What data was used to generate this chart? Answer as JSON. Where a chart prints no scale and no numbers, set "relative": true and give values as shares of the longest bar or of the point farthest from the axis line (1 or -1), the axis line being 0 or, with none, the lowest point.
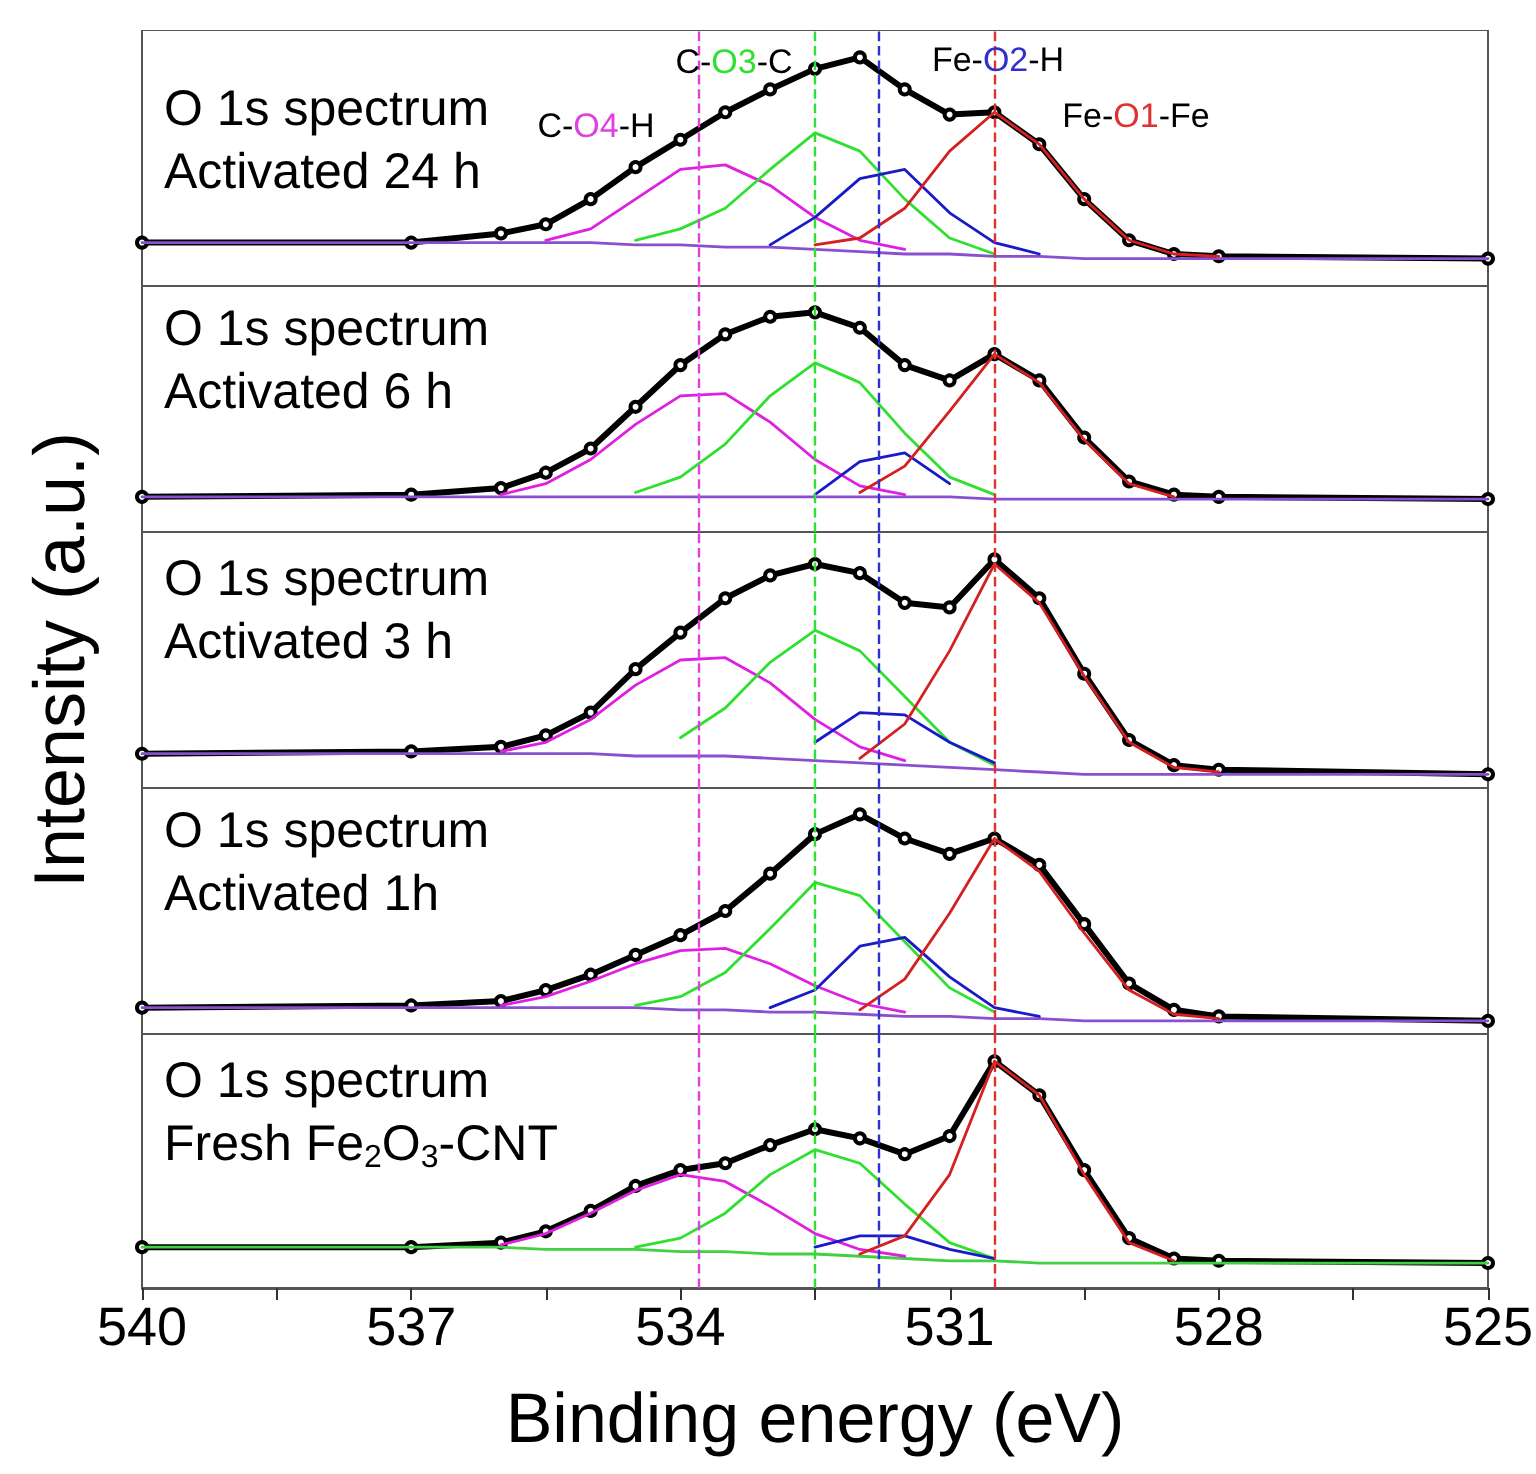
{
  "chart_data": [
    {
      "type": "line",
      "title": "O 1s spectrum",
      "subtitle": "Activated 24 h",
      "relative": true,
      "marker": "none",
      "tick_labels": false,
      "xlim": [
        540,
        525
      ],
      "x": [
        540,
        537,
        536,
        535.5,
        535,
        534.5,
        534,
        533.5,
        533,
        532.5,
        532,
        531.5,
        531,
        530.5,
        530,
        529.5,
        529,
        528.5,
        528,
        525
      ],
      "series": [
        {
          "color": "#000000",
          "marker": "circle",
          "values": [
            0.19,
            0.19,
            0.23,
            0.27,
            0.38,
            0.52,
            0.64,
            0.76,
            0.86,
            0.95,
            1,
            0.86,
            0.75,
            0.76,
            0.62,
            0.38,
            0.2,
            0.14,
            0.13,
            0.12
          ]
        },
        {
          "color": "#8a4fcf",
          "values": [
            0.19,
            0.19,
            0.19,
            0.19,
            0.19,
            0.18,
            0.18,
            0.17,
            0.17,
            0.16,
            0.15,
            0.14,
            0.14,
            0.13,
            0.13,
            0.12,
            0.12,
            0.12,
            0.12,
            0.12
          ]
        },
        {
          "color": "#e020e0",
          "values": [
            null,
            null,
            null,
            0.2,
            0.25,
            0.38,
            0.51,
            0.53,
            0.44,
            0.3,
            0.2,
            0.16,
            null,
            null,
            null,
            null,
            null,
            null,
            null,
            null
          ]
        },
        {
          "color": "#30e030",
          "values": [
            null,
            null,
            null,
            null,
            null,
            0.2,
            0.25,
            0.34,
            0.51,
            0.67,
            0.59,
            0.38,
            0.21,
            0.14,
            null,
            null,
            null,
            null,
            null,
            null
          ]
        },
        {
          "color": "#1a1ac8",
          "values": [
            null,
            null,
            null,
            null,
            null,
            null,
            null,
            null,
            0.18,
            0.3,
            0.47,
            0.51,
            0.32,
            0.19,
            0.14,
            null,
            null,
            null,
            null,
            null
          ]
        },
        {
          "color": "#d42020",
          "values": [
            null,
            null,
            null,
            null,
            null,
            null,
            null,
            null,
            null,
            0.18,
            0.21,
            0.34,
            0.59,
            0.76,
            0.62,
            0.38,
            0.2,
            0.14,
            0.13,
            null
          ]
        }
      ],
      "ref_lines": [
        {
          "axis": "x",
          "value": 533.8,
          "color": "#e040e0",
          "line_style": "dashed"
        },
        {
          "axis": "x",
          "value": 532.5,
          "color": "#30e030",
          "line_style": "dashed"
        },
        {
          "axis": "x",
          "value": 531.8,
          "color": "#3030d0",
          "line_style": "dashed"
        },
        {
          "axis": "x",
          "value": 530.5,
          "color": "#e03030",
          "line_style": "dashed"
        }
      ],
      "annotations": [
        "C-O4-H",
        "C-O3-C",
        "Fe-O2-H",
        "Fe-O1-Fe"
      ]
    },
    {
      "type": "line",
      "title": "O 1s spectrum",
      "subtitle": "Activated 6 h",
      "relative": true,
      "marker": "none",
      "tick_labels": false,
      "xlim": [
        540,
        525
      ],
      "x": [
        540,
        537,
        536,
        535.5,
        535,
        534.5,
        534,
        533.5,
        533,
        532.5,
        532,
        531.5,
        531,
        530.5,
        530,
        529.5,
        529,
        528.5,
        528,
        525
      ],
      "series": [
        {
          "color": "#000000",
          "marker": "circle",
          "values": [
            0.16,
            0.17,
            0.2,
            0.27,
            0.38,
            0.57,
            0.76,
            0.9,
            0.98,
            1,
            0.93,
            0.76,
            0.69,
            0.81,
            0.69,
            0.43,
            0.23,
            0.17,
            0.16,
            0.15
          ]
        },
        {
          "color": "#8a4fcf",
          "values": [
            0.16,
            0.16,
            0.16,
            0.16,
            0.16,
            0.16,
            0.16,
            0.16,
            0.16,
            0.16,
            0.16,
            0.16,
            0.16,
            0.15,
            0.15,
            0.15,
            0.15,
            0.15,
            0.15,
            0.15
          ]
        },
        {
          "color": "#e020e0",
          "values": [
            null,
            null,
            0.17,
            0.22,
            0.33,
            0.49,
            0.62,
            0.63,
            0.5,
            0.33,
            0.21,
            0.17,
            null,
            null,
            null,
            null,
            null,
            null,
            null,
            null
          ]
        },
        {
          "color": "#30e030",
          "values": [
            null,
            null,
            null,
            null,
            null,
            0.18,
            0.25,
            0.4,
            0.62,
            0.77,
            0.68,
            0.45,
            0.25,
            0.17,
            null,
            null,
            null,
            null,
            null,
            null
          ]
        },
        {
          "color": "#1a1ac8",
          "values": [
            null,
            null,
            null,
            null,
            null,
            null,
            null,
            null,
            null,
            0.17,
            0.32,
            0.36,
            0.22,
            null,
            null,
            null,
            null,
            null,
            null,
            null
          ]
        },
        {
          "color": "#d42020",
          "values": [
            null,
            null,
            null,
            null,
            null,
            null,
            null,
            null,
            null,
            null,
            0.18,
            0.3,
            0.55,
            0.81,
            0.68,
            0.42,
            0.22,
            0.16,
            null,
            null
          ]
        }
      ],
      "ref_lines": [
        {
          "axis": "x",
          "value": 533.8,
          "color": "#e040e0",
          "line_style": "dashed"
        },
        {
          "axis": "x",
          "value": 532.5,
          "color": "#30e030",
          "line_style": "dashed"
        },
        {
          "axis": "x",
          "value": 531.8,
          "color": "#3030d0",
          "line_style": "dashed"
        },
        {
          "axis": "x",
          "value": 530.5,
          "color": "#e03030",
          "line_style": "dashed"
        }
      ]
    },
    {
      "type": "line",
      "title": "O 1s spectrum",
      "subtitle": "Activated 3 h",
      "ylabel": "Intensity (a.u.)",
      "relative": true,
      "marker": "none",
      "tick_labels": false,
      "xlim": [
        540,
        525
      ],
      "x": [
        540,
        537,
        536,
        535.5,
        535,
        534.5,
        534,
        533.5,
        533,
        532.5,
        532,
        531.5,
        531,
        530.5,
        530,
        529.5,
        529,
        528.5,
        528,
        525
      ],
      "series": [
        {
          "color": "#000000",
          "marker": "circle",
          "values": [
            0.15,
            0.16,
            0.18,
            0.23,
            0.33,
            0.52,
            0.68,
            0.83,
            0.93,
            0.98,
            0.94,
            0.81,
            0.79,
            1,
            0.83,
            0.5,
            0.21,
            0.1,
            0.08,
            0.06
          ]
        },
        {
          "color": "#8a4fcf",
          "values": [
            0.15,
            0.15,
            0.15,
            0.15,
            0.15,
            0.14,
            0.14,
            0.14,
            0.13,
            0.12,
            0.11,
            0.1,
            0.09,
            0.08,
            0.07,
            0.06,
            0.06,
            0.06,
            0.06,
            0.06
          ]
        },
        {
          "color": "#e020e0",
          "values": [
            null,
            null,
            0.16,
            0.2,
            0.3,
            0.45,
            0.56,
            0.57,
            0.46,
            0.3,
            0.18,
            0.12,
            null,
            null,
            null,
            null,
            null,
            null,
            null,
            null
          ]
        },
        {
          "color": "#30e030",
          "values": [
            null,
            null,
            null,
            null,
            null,
            null,
            0.22,
            0.35,
            0.55,
            0.69,
            0.6,
            0.4,
            0.2,
            0.1,
            null,
            null,
            null,
            null,
            null,
            null
          ]
        },
        {
          "color": "#1a1ac8",
          "values": [
            null,
            null,
            null,
            null,
            null,
            null,
            null,
            null,
            null,
            0.2,
            0.33,
            0.32,
            0.2,
            0.11,
            null,
            null,
            null,
            null,
            null,
            null
          ]
        },
        {
          "color": "#d42020",
          "values": [
            null,
            null,
            null,
            null,
            null,
            null,
            null,
            null,
            null,
            null,
            0.13,
            0.28,
            0.6,
            0.98,
            0.81,
            0.49,
            0.2,
            0.09,
            0.07,
            null
          ]
        }
      ],
      "ref_lines": [
        {
          "axis": "x",
          "value": 533.8,
          "color": "#e040e0",
          "line_style": "dashed"
        },
        {
          "axis": "x",
          "value": 532.5,
          "color": "#30e030",
          "line_style": "dashed"
        },
        {
          "axis": "x",
          "value": 531.8,
          "color": "#3030d0",
          "line_style": "dashed"
        },
        {
          "axis": "x",
          "value": 530.5,
          "color": "#e03030",
          "line_style": "dashed"
        }
      ]
    },
    {
      "type": "line",
      "title": "O 1s spectrum",
      "subtitle": "Activated 1h",
      "relative": true,
      "marker": "none",
      "tick_labels": false,
      "xlim": [
        540,
        525
      ],
      "x": [
        540,
        537,
        536,
        535.5,
        535,
        534.5,
        534,
        533.5,
        533,
        532.5,
        532,
        531.5,
        531,
        530.5,
        530,
        529.5,
        529,
        528.5,
        528,
        525
      ],
      "series": [
        {
          "color": "#000000",
          "marker": "circle",
          "values": [
            0.12,
            0.13,
            0.15,
            0.2,
            0.27,
            0.36,
            0.45,
            0.56,
            0.73,
            0.91,
            1,
            0.89,
            0.82,
            0.89,
            0.77,
            0.5,
            0.23,
            0.11,
            0.08,
            0.06
          ]
        },
        {
          "color": "#8a4fcf",
          "values": [
            0.12,
            0.12,
            0.12,
            0.12,
            0.12,
            0.12,
            0.11,
            0.11,
            0.1,
            0.1,
            0.09,
            0.08,
            0.08,
            0.07,
            0.07,
            0.06,
            0.06,
            0.06,
            0.06,
            0.06
          ]
        },
        {
          "color": "#e020e0",
          "values": [
            null,
            null,
            0.13,
            0.17,
            0.24,
            0.32,
            0.38,
            0.39,
            0.32,
            0.22,
            0.14,
            0.1,
            null,
            null,
            null,
            null,
            null,
            null,
            null,
            null
          ]
        },
        {
          "color": "#30e030",
          "values": [
            null,
            null,
            null,
            null,
            null,
            0.13,
            0.17,
            0.28,
            0.48,
            0.69,
            0.63,
            0.42,
            0.21,
            0.1,
            null,
            null,
            null,
            null,
            null,
            null
          ]
        },
        {
          "color": "#1a1ac8",
          "values": [
            null,
            null,
            null,
            null,
            null,
            null,
            null,
            null,
            0.12,
            0.2,
            0.4,
            0.44,
            0.26,
            0.12,
            0.08,
            null,
            null,
            null,
            null,
            null
          ]
        },
        {
          "color": "#d42020",
          "values": [
            null,
            null,
            null,
            null,
            null,
            null,
            null,
            null,
            null,
            null,
            0.11,
            0.25,
            0.55,
            0.89,
            0.74,
            0.46,
            0.2,
            0.09,
            0.07,
            null
          ]
        }
      ],
      "ref_lines": [
        {
          "axis": "x",
          "value": 533.8,
          "color": "#e040e0",
          "line_style": "dashed"
        },
        {
          "axis": "x",
          "value": 532.5,
          "color": "#30e030",
          "line_style": "dashed"
        },
        {
          "axis": "x",
          "value": 531.8,
          "color": "#3030d0",
          "line_style": "dashed"
        },
        {
          "axis": "x",
          "value": 530.5,
          "color": "#e03030",
          "line_style": "dashed"
        }
      ]
    },
    {
      "type": "line",
      "title": "O 1s spectrum",
      "subtitle": "Fresh Fe$_{2}$O$_{3}$-CNT",
      "xlabel": "Binding energy (eV)",
      "relative": true,
      "marker": "none",
      "tick_labels": "x",
      "xlim": [
        540,
        525
      ],
      "xticks": [
        540,
        {
          "value": 538.5,
          "label": null
        },
        537,
        {
          "value": 535.5,
          "label": null
        },
        534,
        {
          "value": 532.5,
          "label": null
        },
        531,
        {
          "value": 529.5,
          "label": null
        },
        528,
        {
          "value": 526.5,
          "label": null
        },
        525
      ],
      "x": [
        540,
        537,
        536,
        535.5,
        535,
        534.5,
        534,
        533.5,
        533,
        532.5,
        532,
        531.5,
        531,
        530.5,
        530,
        529.5,
        529,
        528.5,
        528,
        525
      ],
      "series": [
        {
          "color": "#000000",
          "marker": "circle",
          "values": [
            0.18,
            0.18,
            0.2,
            0.25,
            0.34,
            0.45,
            0.52,
            0.55,
            0.63,
            0.7,
            0.66,
            0.59,
            0.67,
            1,
            0.85,
            0.52,
            0.22,
            0.13,
            0.12,
            0.11
          ]
        },
        {
          "color": "#40d040",
          "values": [
            0.18,
            0.18,
            0.18,
            0.17,
            0.17,
            0.17,
            0.16,
            0.16,
            0.15,
            0.15,
            0.14,
            0.13,
            0.12,
            0.12,
            0.11,
            0.11,
            0.11,
            0.11,
            0.11,
            0.11
          ]
        },
        {
          "color": "#e020e0",
          "values": [
            null,
            null,
            0.19,
            0.24,
            0.33,
            0.43,
            0.5,
            0.47,
            0.36,
            0.24,
            0.17,
            0.14,
            null,
            null,
            null,
            null,
            null,
            null,
            null,
            null
          ]
        },
        {
          "color": "#30e030",
          "values": [
            null,
            null,
            null,
            null,
            null,
            0.18,
            0.22,
            0.33,
            0.5,
            0.61,
            0.55,
            0.37,
            0.2,
            0.13,
            null,
            null,
            null,
            null,
            null,
            null
          ]
        },
        {
          "color": "#1a1ac8",
          "values": [
            null,
            null,
            null,
            null,
            null,
            null,
            null,
            null,
            null,
            0.18,
            0.23,
            0.23,
            0.17,
            0.13,
            null,
            null,
            null,
            null,
            null,
            null
          ]
        },
        {
          "color": "#d42020",
          "values": [
            null,
            null,
            null,
            null,
            null,
            null,
            null,
            null,
            null,
            null,
            0.15,
            0.23,
            0.5,
            1,
            0.85,
            0.5,
            0.2,
            0.12,
            null,
            null
          ]
        }
      ],
      "ref_lines": [
        {
          "axis": "x",
          "value": 533.8,
          "color": "#e040e0",
          "line_style": "dashed"
        },
        {
          "axis": "x",
          "value": 532.5,
          "color": "#30e030",
          "line_style": "dashed"
        },
        {
          "axis": "x",
          "value": 531.8,
          "color": "#3030d0",
          "line_style": "dashed"
        },
        {
          "axis": "x",
          "value": 530.5,
          "color": "#e03030",
          "line_style": "dashed"
        }
      ]
    }
  ]
}
